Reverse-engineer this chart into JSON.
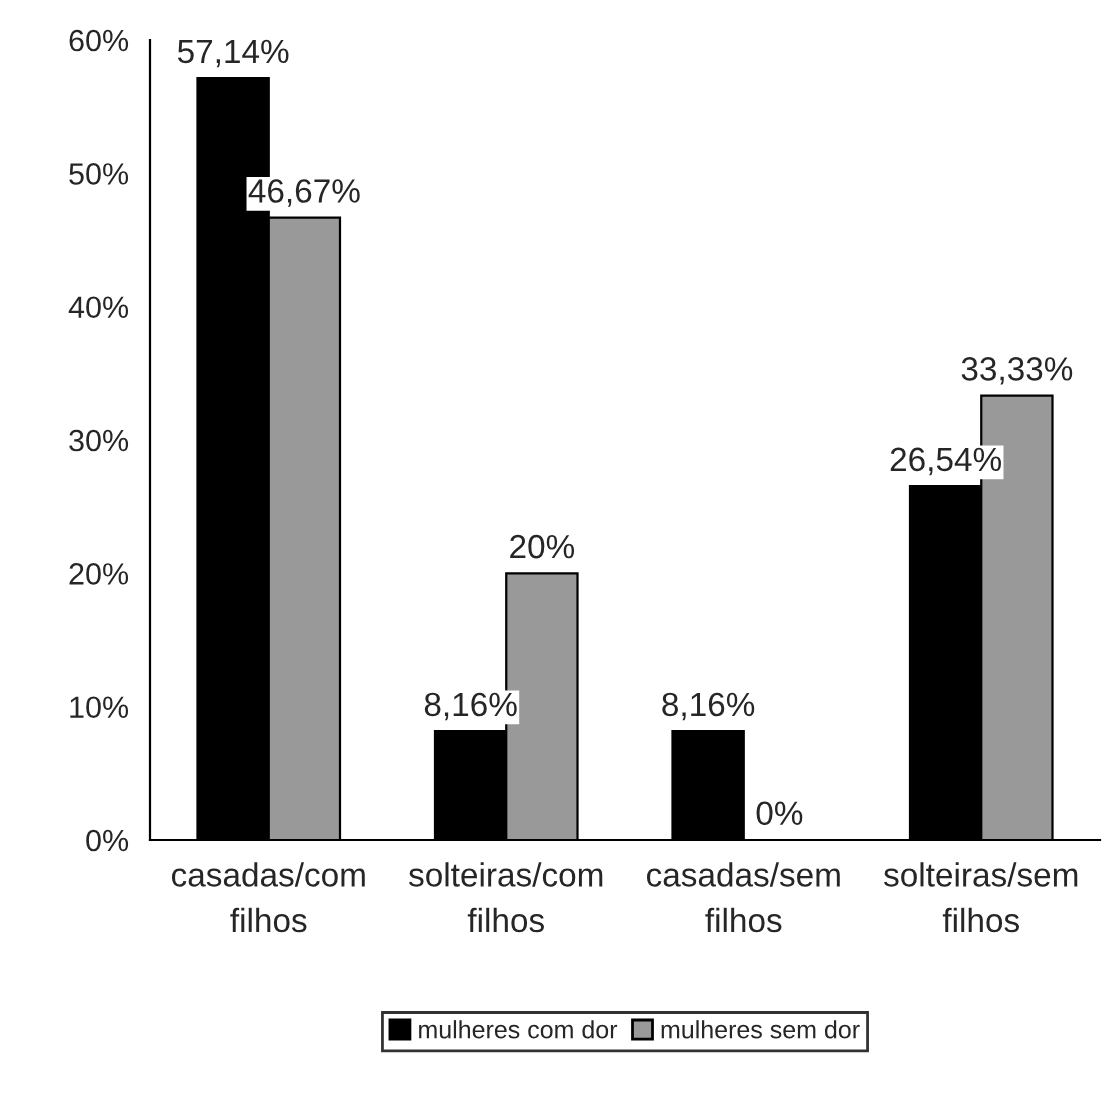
{
  "chart_data": {
    "type": "bar",
    "categories": [
      "casadas/com\nfilhos",
      "solteiras/com\nfilhos",
      "casadas/sem\nfilhos",
      "solteiras/sem\nfilhos"
    ],
    "series": [
      {
        "name": "mulheres com dor",
        "color": "#000000",
        "values": [
          57.14,
          8.16,
          8.16,
          26.54
        ],
        "value_labels": [
          "57,14%",
          "8,16%",
          "8,16%",
          "26,54%"
        ]
      },
      {
        "name": "mulheres sem dor",
        "color": "#999999",
        "values": [
          46.67,
          20,
          0,
          33.33
        ],
        "value_labels": [
          "46,67%",
          "20%",
          "0%",
          "33,33%"
        ]
      }
    ],
    "ylim": [
      0,
      60
    ],
    "yticks": [
      {
        "value": 0,
        "label": "0%"
      },
      {
        "value": 10,
        "label": "10%"
      },
      {
        "value": 20,
        "label": "20%"
      },
      {
        "value": 30,
        "label": "30%"
      },
      {
        "value": 40,
        "label": "40%"
      },
      {
        "value": 50,
        "label": "50%"
      },
      {
        "value": 60,
        "label": "60%"
      }
    ],
    "grid": false,
    "legend": "bottom"
  }
}
